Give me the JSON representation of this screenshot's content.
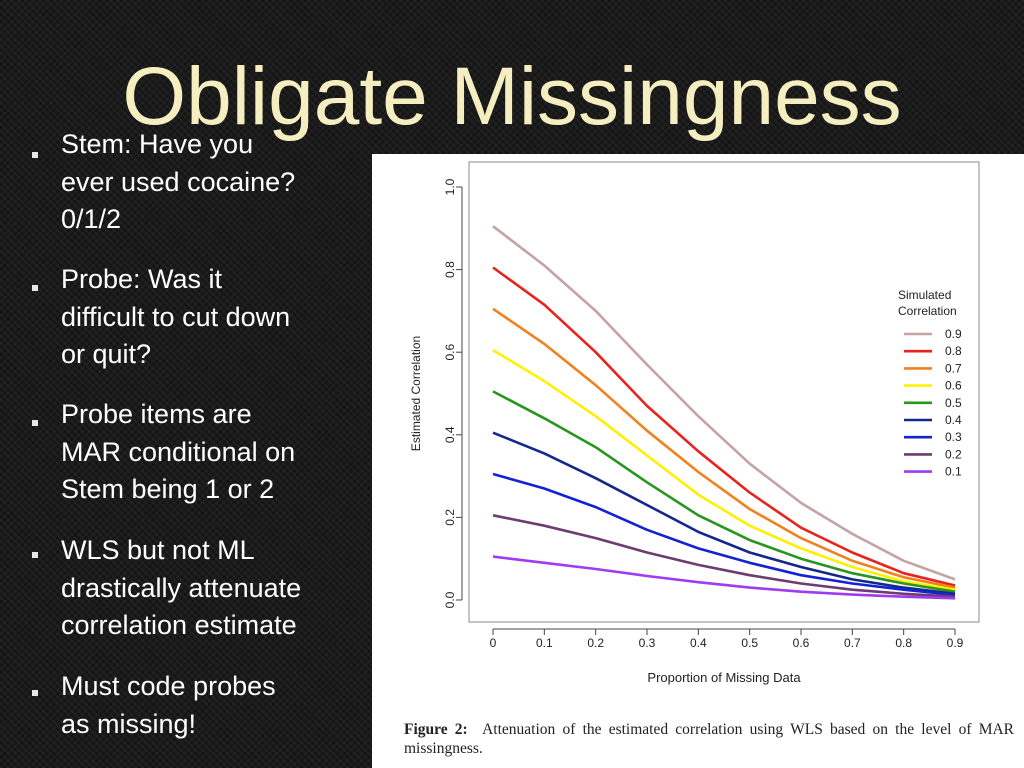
{
  "slide": {
    "title": "Obligate Missingness",
    "bullets": [
      "Stem: Have you\never used cocaine?\n0/1/2",
      "Probe: Was it\ndifficult to cut down\nor quit?",
      "Probe items are\nMAR conditional on\nStem being 1 or 2",
      "WLS but not ML\ndrastically attenuate\ncorrelation estimate",
      "Must code probes\nas missing!"
    ]
  },
  "figure": {
    "caption_label": "Figure 2:",
    "caption_text": "Attenuation of the estimated correlation using WLS based on the level of MAR missingness."
  },
  "chart_data": {
    "type": "line",
    "title": "",
    "xlabel": "Proportion of Missing Data",
    "ylabel": "Estimated Correlation",
    "xlim": [
      0,
      0.9
    ],
    "ylim": [
      0,
      1.0
    ],
    "x_ticks": [
      "0",
      "0.1",
      "0.2",
      "0.3",
      "0.4",
      "0.5",
      "0.6",
      "0.7",
      "0.8",
      "0.9"
    ],
    "y_ticks": [
      "0.0",
      "0.2",
      "0.4",
      "0.6",
      "0.8",
      "1.0"
    ],
    "legend_title": "Simulated\nCorrelation",
    "legend_position": "right",
    "grid": false,
    "x": [
      0,
      0.1,
      0.2,
      0.3,
      0.4,
      0.5,
      0.6,
      0.7,
      0.8,
      0.9
    ],
    "series": [
      {
        "name": "0.9",
        "color": "#c4a3a3",
        "values": [
          0.905,
          0.81,
          0.7,
          0.57,
          0.445,
          0.33,
          0.235,
          0.16,
          0.095,
          0.05
        ]
      },
      {
        "name": "0.8",
        "color": "#e8231e",
        "values": [
          0.805,
          0.715,
          0.6,
          0.47,
          0.36,
          0.26,
          0.175,
          0.115,
          0.065,
          0.035
        ]
      },
      {
        "name": "0.7",
        "color": "#f0821e",
        "values": [
          0.705,
          0.62,
          0.52,
          0.41,
          0.31,
          0.22,
          0.15,
          0.095,
          0.055,
          0.03
        ]
      },
      {
        "name": "0.6",
        "color": "#fff000",
        "values": [
          0.605,
          0.53,
          0.445,
          0.35,
          0.255,
          0.18,
          0.125,
          0.08,
          0.045,
          0.025
        ]
      },
      {
        "name": "0.5",
        "color": "#28961e",
        "values": [
          0.505,
          0.44,
          0.37,
          0.285,
          0.205,
          0.145,
          0.1,
          0.065,
          0.04,
          0.02
        ]
      },
      {
        "name": "0.4",
        "color": "#14288c",
        "values": [
          0.405,
          0.355,
          0.295,
          0.23,
          0.165,
          0.115,
          0.08,
          0.05,
          0.03,
          0.015
        ]
      },
      {
        "name": "0.3",
        "color": "#1423d2",
        "values": [
          0.305,
          0.27,
          0.225,
          0.17,
          0.125,
          0.09,
          0.06,
          0.04,
          0.025,
          0.012
        ]
      },
      {
        "name": "0.2",
        "color": "#6e3c6e",
        "values": [
          0.205,
          0.18,
          0.15,
          0.115,
          0.085,
          0.06,
          0.04,
          0.025,
          0.015,
          0.008
        ]
      },
      {
        "name": "0.1",
        "color": "#a03cf0",
        "values": [
          0.105,
          0.09,
          0.075,
          0.058,
          0.043,
          0.03,
          0.02,
          0.013,
          0.008,
          0.004
        ]
      }
    ]
  }
}
